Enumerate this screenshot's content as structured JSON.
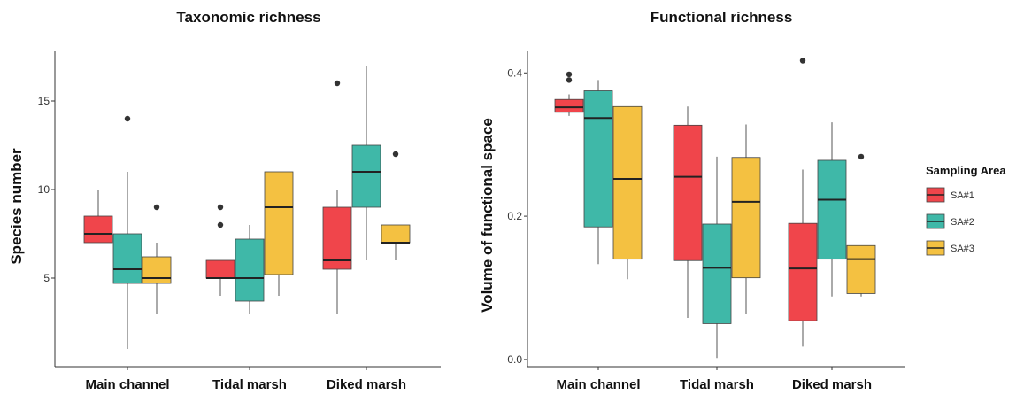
{
  "chart_data": [
    {
      "type": "box",
      "title": "Taxonomic richness",
      "xlabel": "",
      "ylabel": "Species number",
      "ylim": [
        0,
        17.8
      ],
      "yticks": [
        5,
        10,
        15
      ],
      "categories": [
        "Main channel",
        "Tidal marsh",
        "Diked marsh"
      ],
      "series": [
        {
          "name": "SA#1",
          "color": "#f0454b",
          "boxes": [
            {
              "min": 7,
              "q1": 7,
              "median": 7.5,
              "q3": 8.5,
              "max": 10,
              "outliers": []
            },
            {
              "min": 4,
              "q1": 5,
              "median": 5,
              "q3": 6,
              "max": 6,
              "outliers": [
                8,
                9
              ]
            },
            {
              "min": 3,
              "q1": 5.5,
              "median": 6,
              "q3": 9,
              "max": 10,
              "outliers": [
                16
              ]
            }
          ]
        },
        {
          "name": "SA#2",
          "color": "#3fb8a8",
          "boxes": [
            {
              "min": 1,
              "q1": 4.7,
              "median": 5.5,
              "q3": 7.5,
              "max": 11,
              "outliers": [
                14
              ]
            },
            {
              "min": 3,
              "q1": 3.7,
              "median": 5,
              "q3": 7.2,
              "max": 8,
              "outliers": []
            },
            {
              "min": 6,
              "q1": 9,
              "median": 11,
              "q3": 12.5,
              "max": 17,
              "outliers": []
            }
          ]
        },
        {
          "name": "SA#3",
          "color": "#f4c141",
          "boxes": [
            {
              "min": 3,
              "q1": 4.7,
              "median": 5,
              "q3": 6.2,
              "max": 7,
              "outliers": [
                9
              ]
            },
            {
              "min": 4,
              "q1": 5.2,
              "median": 9,
              "q3": 11,
              "max": 11,
              "outliers": []
            },
            {
              "min": 6,
              "q1": 7,
              "median": 7,
              "q3": 8,
              "max": 8,
              "outliers": [
                12
              ]
            }
          ]
        }
      ]
    },
    {
      "type": "box",
      "title": "Functional richness",
      "xlabel": "",
      "ylabel": "Volume of functional space",
      "ylim": [
        -0.01,
        0.43
      ],
      "yticks": [
        "0.0",
        "0.2",
        "0.4"
      ],
      "categories": [
        "Main channel",
        "Tidal marsh",
        "Diked marsh"
      ],
      "series": [
        {
          "name": "SA#1",
          "color": "#f0454b",
          "boxes": [
            {
              "min": 0.34,
              "q1": 0.345,
              "median": 0.352,
              "q3": 0.363,
              "max": 0.37,
              "outliers": [
                0.39,
                0.398
              ]
            },
            {
              "min": 0.058,
              "q1": 0.138,
              "median": 0.255,
              "q3": 0.327,
              "max": 0.353,
              "outliers": []
            },
            {
              "min": 0.018,
              "q1": 0.054,
              "median": 0.127,
              "q3": 0.19,
              "max": 0.265,
              "outliers": [
                0.417
              ]
            }
          ]
        },
        {
          "name": "SA#2",
          "color": "#3fb8a8",
          "boxes": [
            {
              "min": 0.133,
              "q1": 0.185,
              "median": 0.337,
              "q3": 0.375,
              "max": 0.39,
              "outliers": []
            },
            {
              "min": 0.002,
              "q1": 0.05,
              "median": 0.128,
              "q3": 0.189,
              "max": 0.283,
              "outliers": []
            },
            {
              "min": 0.088,
              "q1": 0.14,
              "median": 0.223,
              "q3": 0.278,
              "max": 0.331,
              "outliers": []
            }
          ]
        },
        {
          "name": "SA#3",
          "color": "#f4c141",
          "boxes": [
            {
              "min": 0.112,
              "q1": 0.14,
              "median": 0.252,
              "q3": 0.353,
              "max": 0.353,
              "outliers": []
            },
            {
              "min": 0.063,
              "q1": 0.114,
              "median": 0.22,
              "q3": 0.282,
              "max": 0.328,
              "outliers": []
            },
            {
              "min": 0.088,
              "q1": 0.092,
              "median": 0.14,
              "q3": 0.159,
              "max": 0.159,
              "outliers": [
                0.283
              ]
            }
          ]
        }
      ]
    }
  ],
  "legend": {
    "title": "Sampling Area",
    "items": [
      {
        "label": "SA#1",
        "color": "#f0454b"
      },
      {
        "label": "SA#2",
        "color": "#3fb8a8"
      },
      {
        "label": "SA#3",
        "color": "#f4c141"
      }
    ]
  }
}
